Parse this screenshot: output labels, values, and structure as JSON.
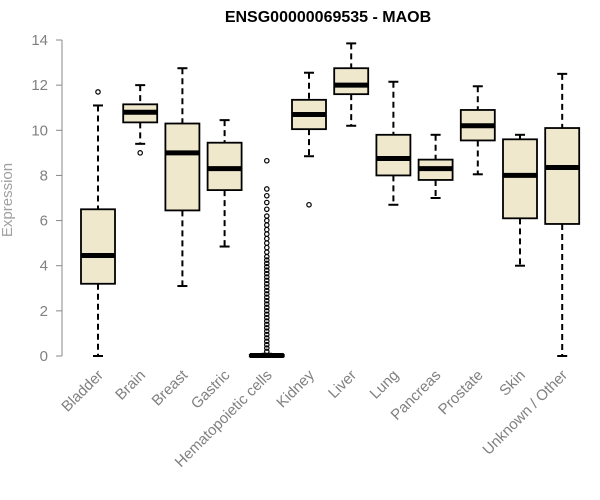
{
  "chart_data": {
    "type": "boxplot",
    "title": "ENSG00000069535 - MAOB",
    "xlabel": "",
    "ylabel": "Expression",
    "ylim": [
      0,
      14
    ],
    "yticks": [
      0,
      2,
      4,
      6,
      8,
      10,
      12,
      14
    ],
    "grid": false,
    "colors": {
      "box_fill": "#efe8cc",
      "outline": "#000000",
      "axis": "#888888",
      "tick_text": "#808080"
    },
    "categories": [
      "Bladder",
      "Brain",
      "Breast",
      "Gastric",
      "Hematopoietic cells",
      "Kidney",
      "Liver",
      "Lung",
      "Pancreas",
      "Prostate",
      "Skin",
      "Unknown / Other"
    ],
    "boxes": [
      {
        "category": "Bladder",
        "min": 0.0,
        "q1": 3.2,
        "median": 4.45,
        "q3": 6.5,
        "max": 11.1,
        "outliers": [
          11.7
        ]
      },
      {
        "category": "Brain",
        "min": 9.4,
        "q1": 10.35,
        "median": 10.8,
        "q3": 11.15,
        "max": 12.0,
        "outliers": [
          9.0
        ]
      },
      {
        "category": "Breast",
        "min": 3.1,
        "q1": 6.45,
        "median": 9.0,
        "q3": 10.3,
        "max": 12.75,
        "outliers": []
      },
      {
        "category": "Gastric",
        "min": 4.85,
        "q1": 7.35,
        "median": 8.3,
        "q3": 9.45,
        "max": 10.45,
        "outliers": []
      },
      {
        "category": "Hematopoietic cells",
        "min": 0.0,
        "q1": 0.0,
        "median": 0.02,
        "q3": 0.05,
        "max": 0.1,
        "outliers": [
          0.2,
          0.35,
          0.5,
          0.65,
          0.8,
          0.95,
          1.1,
          1.25,
          1.4,
          1.55,
          1.7,
          1.85,
          2.0,
          2.15,
          2.3,
          2.45,
          2.6,
          2.75,
          2.9,
          3.05,
          3.2,
          3.35,
          3.5,
          3.65,
          3.8,
          3.95,
          4.1,
          4.25,
          4.4,
          4.6,
          4.8,
          5.0,
          5.2,
          5.4,
          5.6,
          5.8,
          6.0,
          6.2,
          6.5,
          6.8,
          7.1,
          7.4,
          8.65
        ]
      },
      {
        "category": "Kidney",
        "min": 8.85,
        "q1": 10.05,
        "median": 10.7,
        "q3": 11.35,
        "max": 12.55,
        "outliers": [
          6.7
        ]
      },
      {
        "category": "Liver",
        "min": 10.2,
        "q1": 11.6,
        "median": 12.0,
        "q3": 12.75,
        "max": 13.85,
        "outliers": []
      },
      {
        "category": "Lung",
        "min": 6.7,
        "q1": 8.0,
        "median": 8.75,
        "q3": 9.8,
        "max": 12.15,
        "outliers": []
      },
      {
        "category": "Pancreas",
        "min": 7.0,
        "q1": 7.8,
        "median": 8.3,
        "q3": 8.7,
        "max": 9.8,
        "outliers": []
      },
      {
        "category": "Prostate",
        "min": 8.05,
        "q1": 9.55,
        "median": 10.2,
        "q3": 10.9,
        "max": 11.95,
        "outliers": []
      },
      {
        "category": "Skin",
        "min": 4.0,
        "q1": 6.1,
        "median": 8.0,
        "q3": 9.6,
        "max": 9.8,
        "outliers": []
      },
      {
        "category": "Unknown / Other",
        "min": 0.0,
        "q1": 5.85,
        "median": 8.35,
        "q3": 10.1,
        "max": 12.5,
        "outliers": []
      }
    ]
  }
}
